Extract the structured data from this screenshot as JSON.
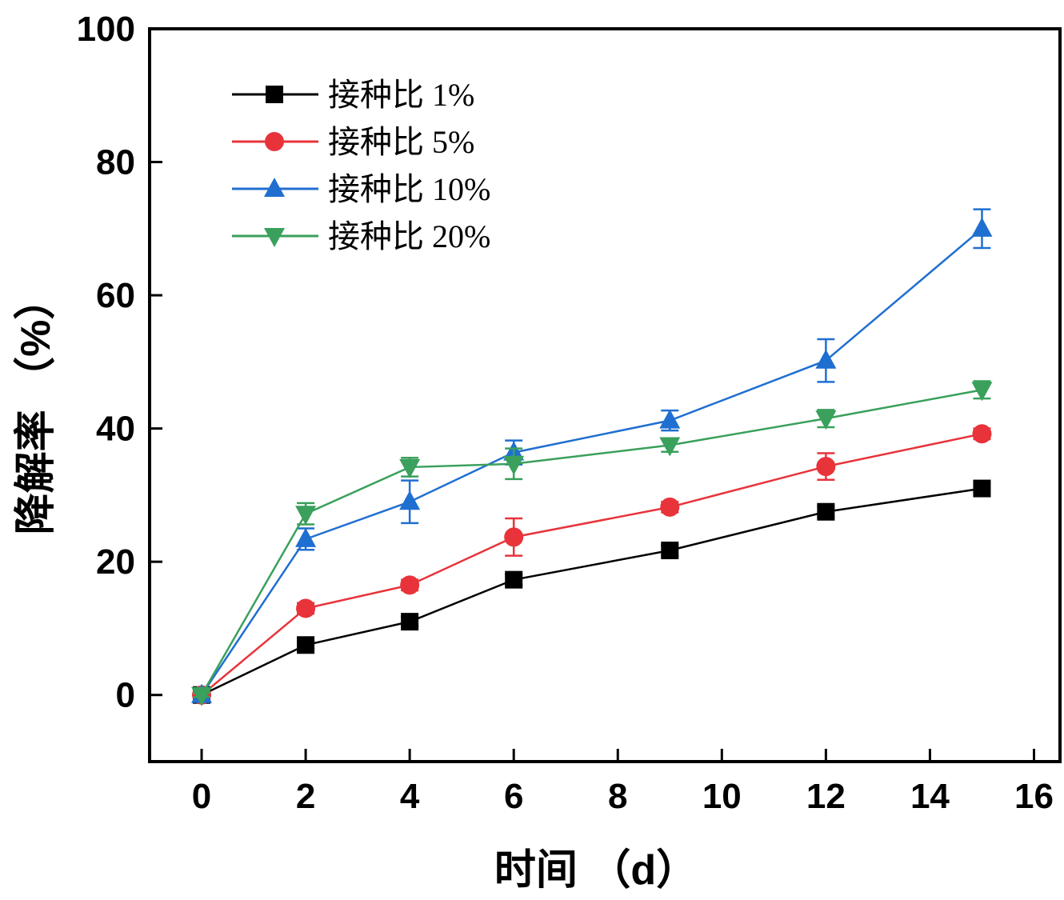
{
  "chart_data": {
    "type": "line",
    "title": "",
    "xlabel": "时间 （d）",
    "ylabel": "降解率 （%）",
    "xlim": [
      -1,
      16.5
    ],
    "ylim": [
      -10,
      100
    ],
    "xticks": [
      0,
      2,
      4,
      6,
      8,
      10,
      12,
      14,
      16
    ],
    "yticks": [
      0,
      20,
      40,
      60,
      80,
      100
    ],
    "x": [
      0,
      2,
      4,
      6,
      9,
      12,
      15
    ],
    "legend_position": "top-left",
    "series": [
      {
        "name": "接种比 1%",
        "color": "#000000",
        "marker": "square",
        "values": [
          0,
          7.5,
          11,
          17.3,
          21.7,
          27.5,
          31
        ],
        "errors": [
          0.3,
          0.6,
          0.7,
          0.8,
          0.8,
          0.8,
          0.8
        ]
      },
      {
        "name": "接种比 5%",
        "color": "#e8333a",
        "marker": "circle",
        "values": [
          0,
          13,
          16.5,
          23.7,
          28.2,
          34.3,
          39.2
        ],
        "errors": [
          0.3,
          0.8,
          0.8,
          2.8,
          0.8,
          2.0,
          0.8
        ]
      },
      {
        "name": "接种比 10%",
        "color": "#1f6fd1",
        "marker": "triangle-up",
        "values": [
          0,
          23.4,
          29,
          36.4,
          41.2,
          50.2,
          70
        ],
        "errors": [
          0.3,
          1.6,
          3.2,
          1.8,
          1.5,
          3.2,
          2.9
        ]
      },
      {
        "name": "接种比 20%",
        "color": "#3aa05c",
        "marker": "triangle-down",
        "values": [
          0,
          27.2,
          34.2,
          34.7,
          37.5,
          41.5,
          45.8
        ],
        "errors": [
          0.3,
          1.6,
          1.4,
          2.3,
          1.0,
          1.3,
          1.3
        ]
      }
    ]
  }
}
